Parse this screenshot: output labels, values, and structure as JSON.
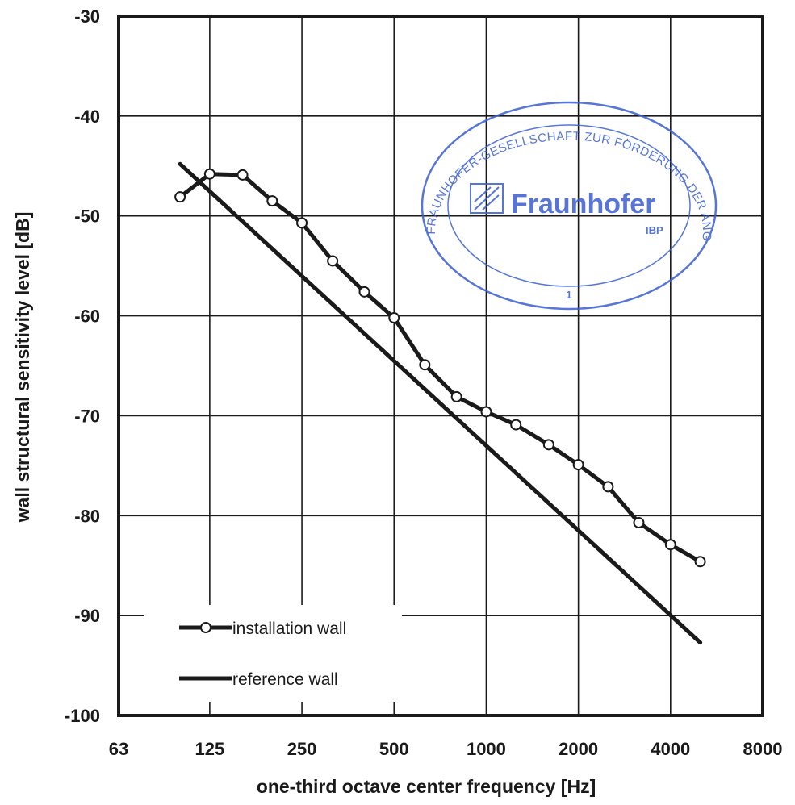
{
  "chart_data": {
    "type": "line",
    "title": "",
    "xlabel": "one-third octave center frequency  [Hz]",
    "ylabel": "wall structural sensitivity level  [dB]",
    "x_scale": "log",
    "x_ticks": [
      63,
      125,
      250,
      500,
      1000,
      2000,
      4000,
      8000
    ],
    "x_tick_labels": [
      "63",
      "125",
      "250",
      "500",
      "1000",
      "2000",
      "4000",
      "8000"
    ],
    "xlim": [
      63,
      8000
    ],
    "y_ticks": [
      -30,
      -40,
      -50,
      -60,
      -70,
      -80,
      -90,
      -100
    ],
    "y_tick_labels": [
      "-30",
      "-40",
      "-50",
      "-60",
      "-70",
      "-80",
      "-90",
      "-100"
    ],
    "ylim": [
      -100,
      -30
    ],
    "grid": true,
    "legend_position": "bottom-left",
    "series": [
      {
        "name": "installation wall",
        "marker": "circle",
        "x": [
          100,
          125,
          160,
          200,
          250,
          315,
          400,
          500,
          630,
          800,
          1000,
          1250,
          1600,
          2000,
          2500,
          3150,
          4000,
          5000
        ],
        "y": [
          -48.1,
          -45.8,
          -45.9,
          -48.5,
          -50.7,
          -54.5,
          -57.6,
          -60.2,
          -64.9,
          -68.1,
          -69.6,
          -70.9,
          -72.9,
          -74.9,
          -77.1,
          -80.7,
          -82.9,
          -84.6
        ]
      },
      {
        "name": "reference wall",
        "marker": "none",
        "x": [
          100,
          5000
        ],
        "y": [
          -44.8,
          -92.7
        ]
      }
    ]
  },
  "stamp": {
    "org_text": "FRAUNHOFER-GESELLSCHAFT ZUR FÖRDERUNG DER ANGEWANDTEN FORSCHUNG E.V.",
    "brand": "Fraunhofer",
    "institute": "IBP",
    "number": "1",
    "color": "#3a5ed0"
  }
}
